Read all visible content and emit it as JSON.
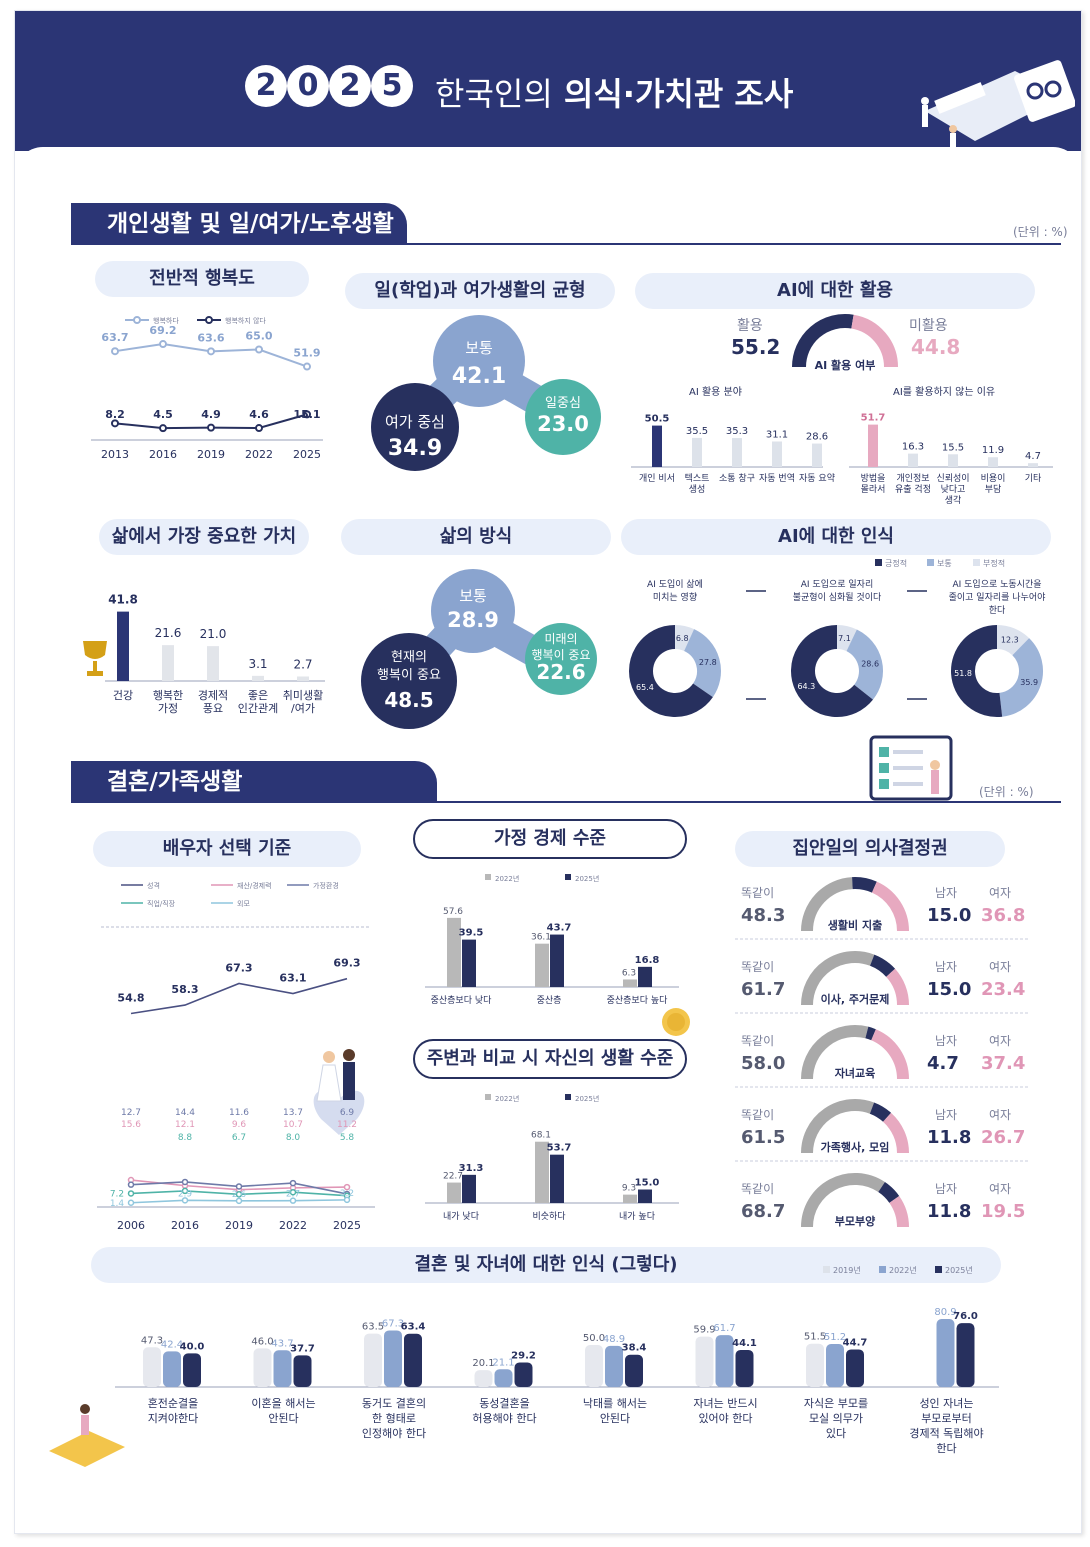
{
  "header": {
    "year_digits": [
      "2",
      "0",
      "2",
      "5"
    ],
    "title_light": "한국인의",
    "title_bold": "의식·가치관 조사"
  },
  "sections": {
    "personal": "개인생활 및 일/여가/노후생활",
    "family": "결혼/가족생활",
    "unit": "(단위 : %)"
  },
  "colors": {
    "navy": "#27305e",
    "blue": "#2b3575",
    "lightblue": "#9db4d8",
    "pink": "#e7a9c0",
    "teal": "#4fb3a7",
    "gray": "#cfcfcf"
  },
  "happiness": {
    "title": "전반적 행복도",
    "legend": [
      "행복하다",
      "행복하지 않다"
    ],
    "chart_data": {
      "type": "line",
      "x": [
        "2013",
        "2016",
        "2019",
        "2022",
        "2025"
      ],
      "series": [
        {
          "name": "행복하다",
          "values": [
            63.7,
            69.2,
            63.6,
            65.0,
            51.9
          ]
        },
        {
          "name": "행복하지 않다",
          "values": [
            8.2,
            4.5,
            4.9,
            4.6,
            15.1
          ]
        }
      ]
    }
  },
  "worklife": {
    "title": "일(학업)과 여가생활의 균형",
    "bubbles": [
      {
        "label": "보통",
        "value": "42.1"
      },
      {
        "label": "여가 중심",
        "value": "34.9"
      },
      {
        "label": "일중심",
        "value": "23.0"
      }
    ]
  },
  "ai_use": {
    "title": "AI에 대한 활용",
    "used_label": "활용",
    "used_value": "55.2",
    "unused_label": "미활용",
    "unused_value": "44.8",
    "gauge_label": "AI 활용 여부",
    "fields_title": "AI 활용 분야",
    "reasons_title": "AI를 활용하지 않는 이유",
    "chart_data": [
      {
        "type": "bar",
        "categories": [
          "개인 비서",
          "텍스트 생성",
          "소통 창구",
          "자동 번역",
          "자동 요약"
        ],
        "values": [
          50.5,
          35.5,
          35.3,
          31.1,
          28.6
        ]
      },
      {
        "type": "bar",
        "categories": [
          "방법을 몰라서",
          "개인정보 유출 걱정",
          "신뢰성이 낮다고 생각",
          "비용이 부담",
          "기타"
        ],
        "values": [
          51.7,
          16.3,
          15.5,
          11.9,
          4.7
        ]
      }
    ]
  },
  "values": {
    "title": "삶에서 가장 중요한 가치",
    "chart_data": {
      "type": "bar",
      "categories": [
        "건강",
        "행복한 가정",
        "경제적 풍요",
        "좋은 인간관계",
        "취미생활 /여가"
      ],
      "values": [
        41.8,
        21.6,
        21.0,
        3.1,
        2.7
      ]
    }
  },
  "lifestyle": {
    "title": "삶의 방식",
    "bubbles": [
      {
        "label": "보통",
        "value": "28.9"
      },
      {
        "label": "현재의 행복이 중요",
        "value": "48.5"
      },
      {
        "label": "미래의 행복이 중요",
        "value": "22.6"
      }
    ]
  },
  "ai_perception": {
    "title": "AI에 대한 인식",
    "legend": [
      "긍정적",
      "보통",
      "부정적"
    ],
    "chart_data": [
      {
        "type": "pie",
        "title": "AI 도입이 삶에 미치는 영향",
        "values": [
          65.4,
          27.8,
          6.8
        ]
      },
      {
        "type": "pie",
        "title": "AI 도입으로 일자리 불균형이 심화될 것이다",
        "values": [
          64.3,
          28.6,
          7.1
        ]
      },
      {
        "type": "pie",
        "title": "AI 도입으로 노동시간을 줄이고 일자리를 나누어야 한다",
        "values": [
          51.8,
          35.9,
          12.3
        ]
      }
    ]
  },
  "spouse": {
    "title": "배우자 선택 기준",
    "legend": [
      "성격",
      "재산/경제력",
      "가정환경",
      "직업/직장",
      "외모"
    ],
    "chart_data": {
      "type": "line",
      "x": [
        "2006",
        "2016",
        "2019",
        "2022",
        "2025"
      ],
      "series": [
        {
          "name": "성격",
          "values": [
            54.8,
            58.3,
            67.3,
            63.1,
            69.3
          ]
        },
        {
          "name": "재산/경제력",
          "values": [
            15.6,
            12.1,
            9.6,
            10.7,
            11.2
          ]
        },
        {
          "name": "가정환경",
          "values": [
            12.7,
            14.4,
            11.6,
            13.7,
            6.9
          ]
        },
        {
          "name": "직업/직장",
          "values": [
            7.2,
            8.8,
            6.7,
            8.0,
            5.8
          ]
        },
        {
          "name": "외모",
          "values": [
            1.4,
            2.9,
            2.6,
            2.7,
            3.2
          ]
        }
      ]
    }
  },
  "household_econ": {
    "title": "가정 경제 수준",
    "legend": [
      "2022년",
      "2025년"
    ],
    "chart_data": {
      "type": "bar",
      "categories": [
        "중산층보다 낮다",
        "중산층",
        "중산층보다 높다"
      ],
      "series": [
        {
          "name": "2022년",
          "values": [
            57.6,
            36.1,
            6.3
          ]
        },
        {
          "name": "2025년",
          "values": [
            39.5,
            43.7,
            16.8
          ]
        }
      ]
    }
  },
  "relative_living": {
    "title": "주변과 비교 시 자신의 생활 수준",
    "legend": [
      "2022년",
      "2025년"
    ],
    "chart_data": {
      "type": "bar",
      "categories": [
        "내가 낮다",
        "비슷하다",
        "내가 높다"
      ],
      "series": [
        {
          "name": "2022년",
          "values": [
            22.7,
            68.1,
            9.3
          ]
        },
        {
          "name": "2025년",
          "values": [
            31.3,
            53.7,
            15.0
          ]
        }
      ]
    }
  },
  "decision": {
    "title": "집안일의 의사결정권",
    "same_label": "똑같이",
    "male_label": "남자",
    "female_label": "여자",
    "rows": [
      {
        "label": "생활비 지출",
        "same": "48.3",
        "male": "15.0",
        "female": "36.8"
      },
      {
        "label": "이사, 주거문제",
        "same": "61.7",
        "male": "15.0",
        "female": "23.4"
      },
      {
        "label": "자녀교육",
        "same": "58.0",
        "male": "4.7",
        "female": "37.4"
      },
      {
        "label": "가족행사, 모임",
        "same": "61.5",
        "male": "11.8",
        "female": "26.7"
      },
      {
        "label": "부모부양",
        "same": "68.7",
        "male": "11.8",
        "female": "19.5"
      }
    ]
  },
  "marriage": {
    "title": "결혼 및 자녀에 대한 인식 (그렇다)",
    "legend": [
      "2019년",
      "2022년",
      "2025년"
    ],
    "chart_data": {
      "type": "bar",
      "categories": [
        "혼전순결을 지켜야한다",
        "이혼을 해서는 안된다",
        "동거도 결혼의 한 형태로 인정해야 한다",
        "동성결혼을 허용해야 한다",
        "낙태를 해서는 안된다",
        "자녀는 반드시 있어야 한다",
        "자식은 부모를 모실 의무가 있다",
        "성인 자녀는 부모로부터 경제적 독립해야 한다"
      ],
      "series": [
        {
          "name": "2019년",
          "values": [
            47.3,
            46.0,
            63.5,
            20.1,
            50.0,
            59.9,
            51.5,
            null
          ]
        },
        {
          "name": "2022년",
          "values": [
            42.4,
            43.7,
            67.3,
            21.1,
            48.9,
            61.7,
            51.2,
            80.9
          ]
        },
        {
          "name": "2025년",
          "values": [
            40.0,
            37.7,
            63.4,
            29.2,
            38.4,
            44.1,
            44.7,
            76.0
          ]
        }
      ]
    }
  }
}
